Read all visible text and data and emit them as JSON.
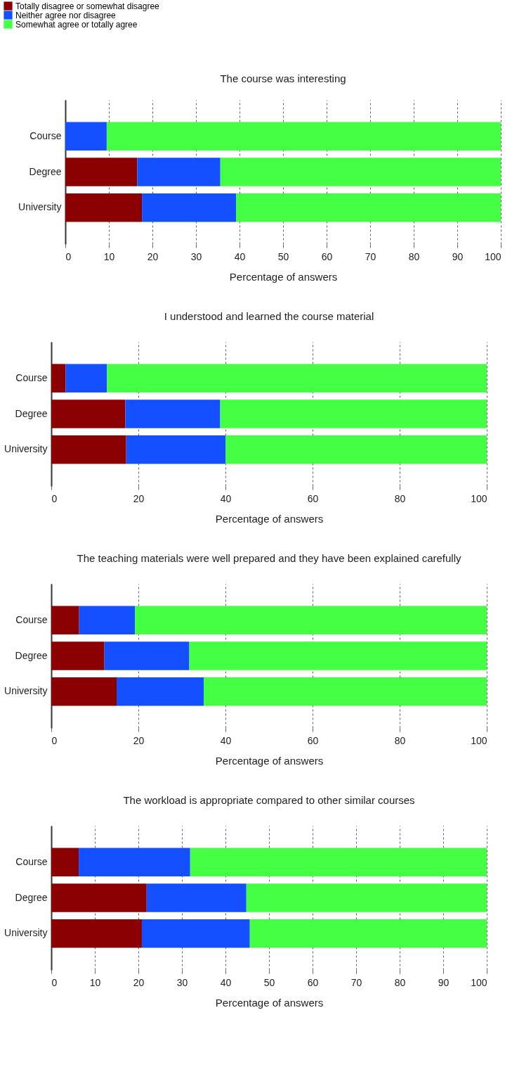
{
  "chart_data": [
    {
      "type": "bar",
      "orientation": "horizontal",
      "stacked": true,
      "title": "The course was interesting",
      "xlabel": "Percentage of answers",
      "categories": [
        "Course",
        "Degree",
        "University"
      ],
      "xlim": [
        0,
        100
      ],
      "xticks": [
        0,
        10,
        20,
        30,
        40,
        50,
        60,
        70,
        80,
        90,
        100
      ],
      "grid": "x",
      "legend": "top left",
      "series": [
        {
          "name": "Totally disagree or somewhat disagree",
          "color": "#8b0000",
          "values": [
            0,
            16.5,
            17.6
          ]
        },
        {
          "name": "Neither agree nor disagree",
          "color": "#1450ff",
          "values": [
            9.5,
            19.1,
            21.6
          ]
        },
        {
          "name": "Somewhat agree or totally agree",
          "color": "#44ff44",
          "values": [
            90.5,
            64.4,
            60.8
          ]
        }
      ]
    },
    {
      "type": "bar",
      "orientation": "horizontal",
      "stacked": true,
      "title": "I understood and learned the course material",
      "xlabel": "Percentage of answers",
      "categories": [
        "Course",
        "Degree",
        "University"
      ],
      "xlim": [
        0,
        100
      ],
      "xticks": [
        0,
        20,
        40,
        60,
        80,
        100
      ],
      "grid": "x",
      "series": [
        {
          "color": "#8b0000",
          "values": [
            3.3,
            17.0,
            17.2
          ]
        },
        {
          "color": "#1450ff",
          "values": [
            9.5,
            21.8,
            22.8
          ]
        },
        {
          "color": "#44ff44",
          "values": [
            87.2,
            61.2,
            60.0
          ]
        }
      ]
    },
    {
      "type": "bar",
      "orientation": "horizontal",
      "stacked": true,
      "title": "The teaching materials were well prepared and they have been explained carefully",
      "xlabel": "Percentage of answers",
      "categories": [
        "Course",
        "Degree",
        "University"
      ],
      "xlim": [
        0,
        100
      ],
      "xticks": [
        0,
        20,
        40,
        60,
        80,
        100
      ],
      "grid": "x",
      "series": [
        {
          "color": "#8b0000",
          "values": [
            6.4,
            12.2,
            15.0
          ]
        },
        {
          "color": "#1450ff",
          "values": [
            12.8,
            19.5,
            20.0
          ]
        },
        {
          "color": "#44ff44",
          "values": [
            80.8,
            68.3,
            65.0
          ]
        }
      ]
    },
    {
      "type": "bar",
      "orientation": "horizontal",
      "stacked": true,
      "title": "The workload is appropriate compared to other similar courses",
      "xlabel": "Percentage of answers",
      "categories": [
        "Course",
        "Degree",
        "University"
      ],
      "xlim": [
        0,
        100
      ],
      "xticks": [
        0,
        10,
        20,
        30,
        40,
        50,
        60,
        70,
        80,
        90,
        100
      ],
      "grid": "x",
      "series": [
        {
          "color": "#8b0000",
          "values": [
            6.3,
            21.9,
            20.8
          ]
        },
        {
          "color": "#1450ff",
          "values": [
            25.6,
            22.9,
            24.8
          ]
        },
        {
          "color": "#44ff44",
          "values": [
            68.1,
            55.2,
            54.4
          ]
        }
      ]
    }
  ]
}
